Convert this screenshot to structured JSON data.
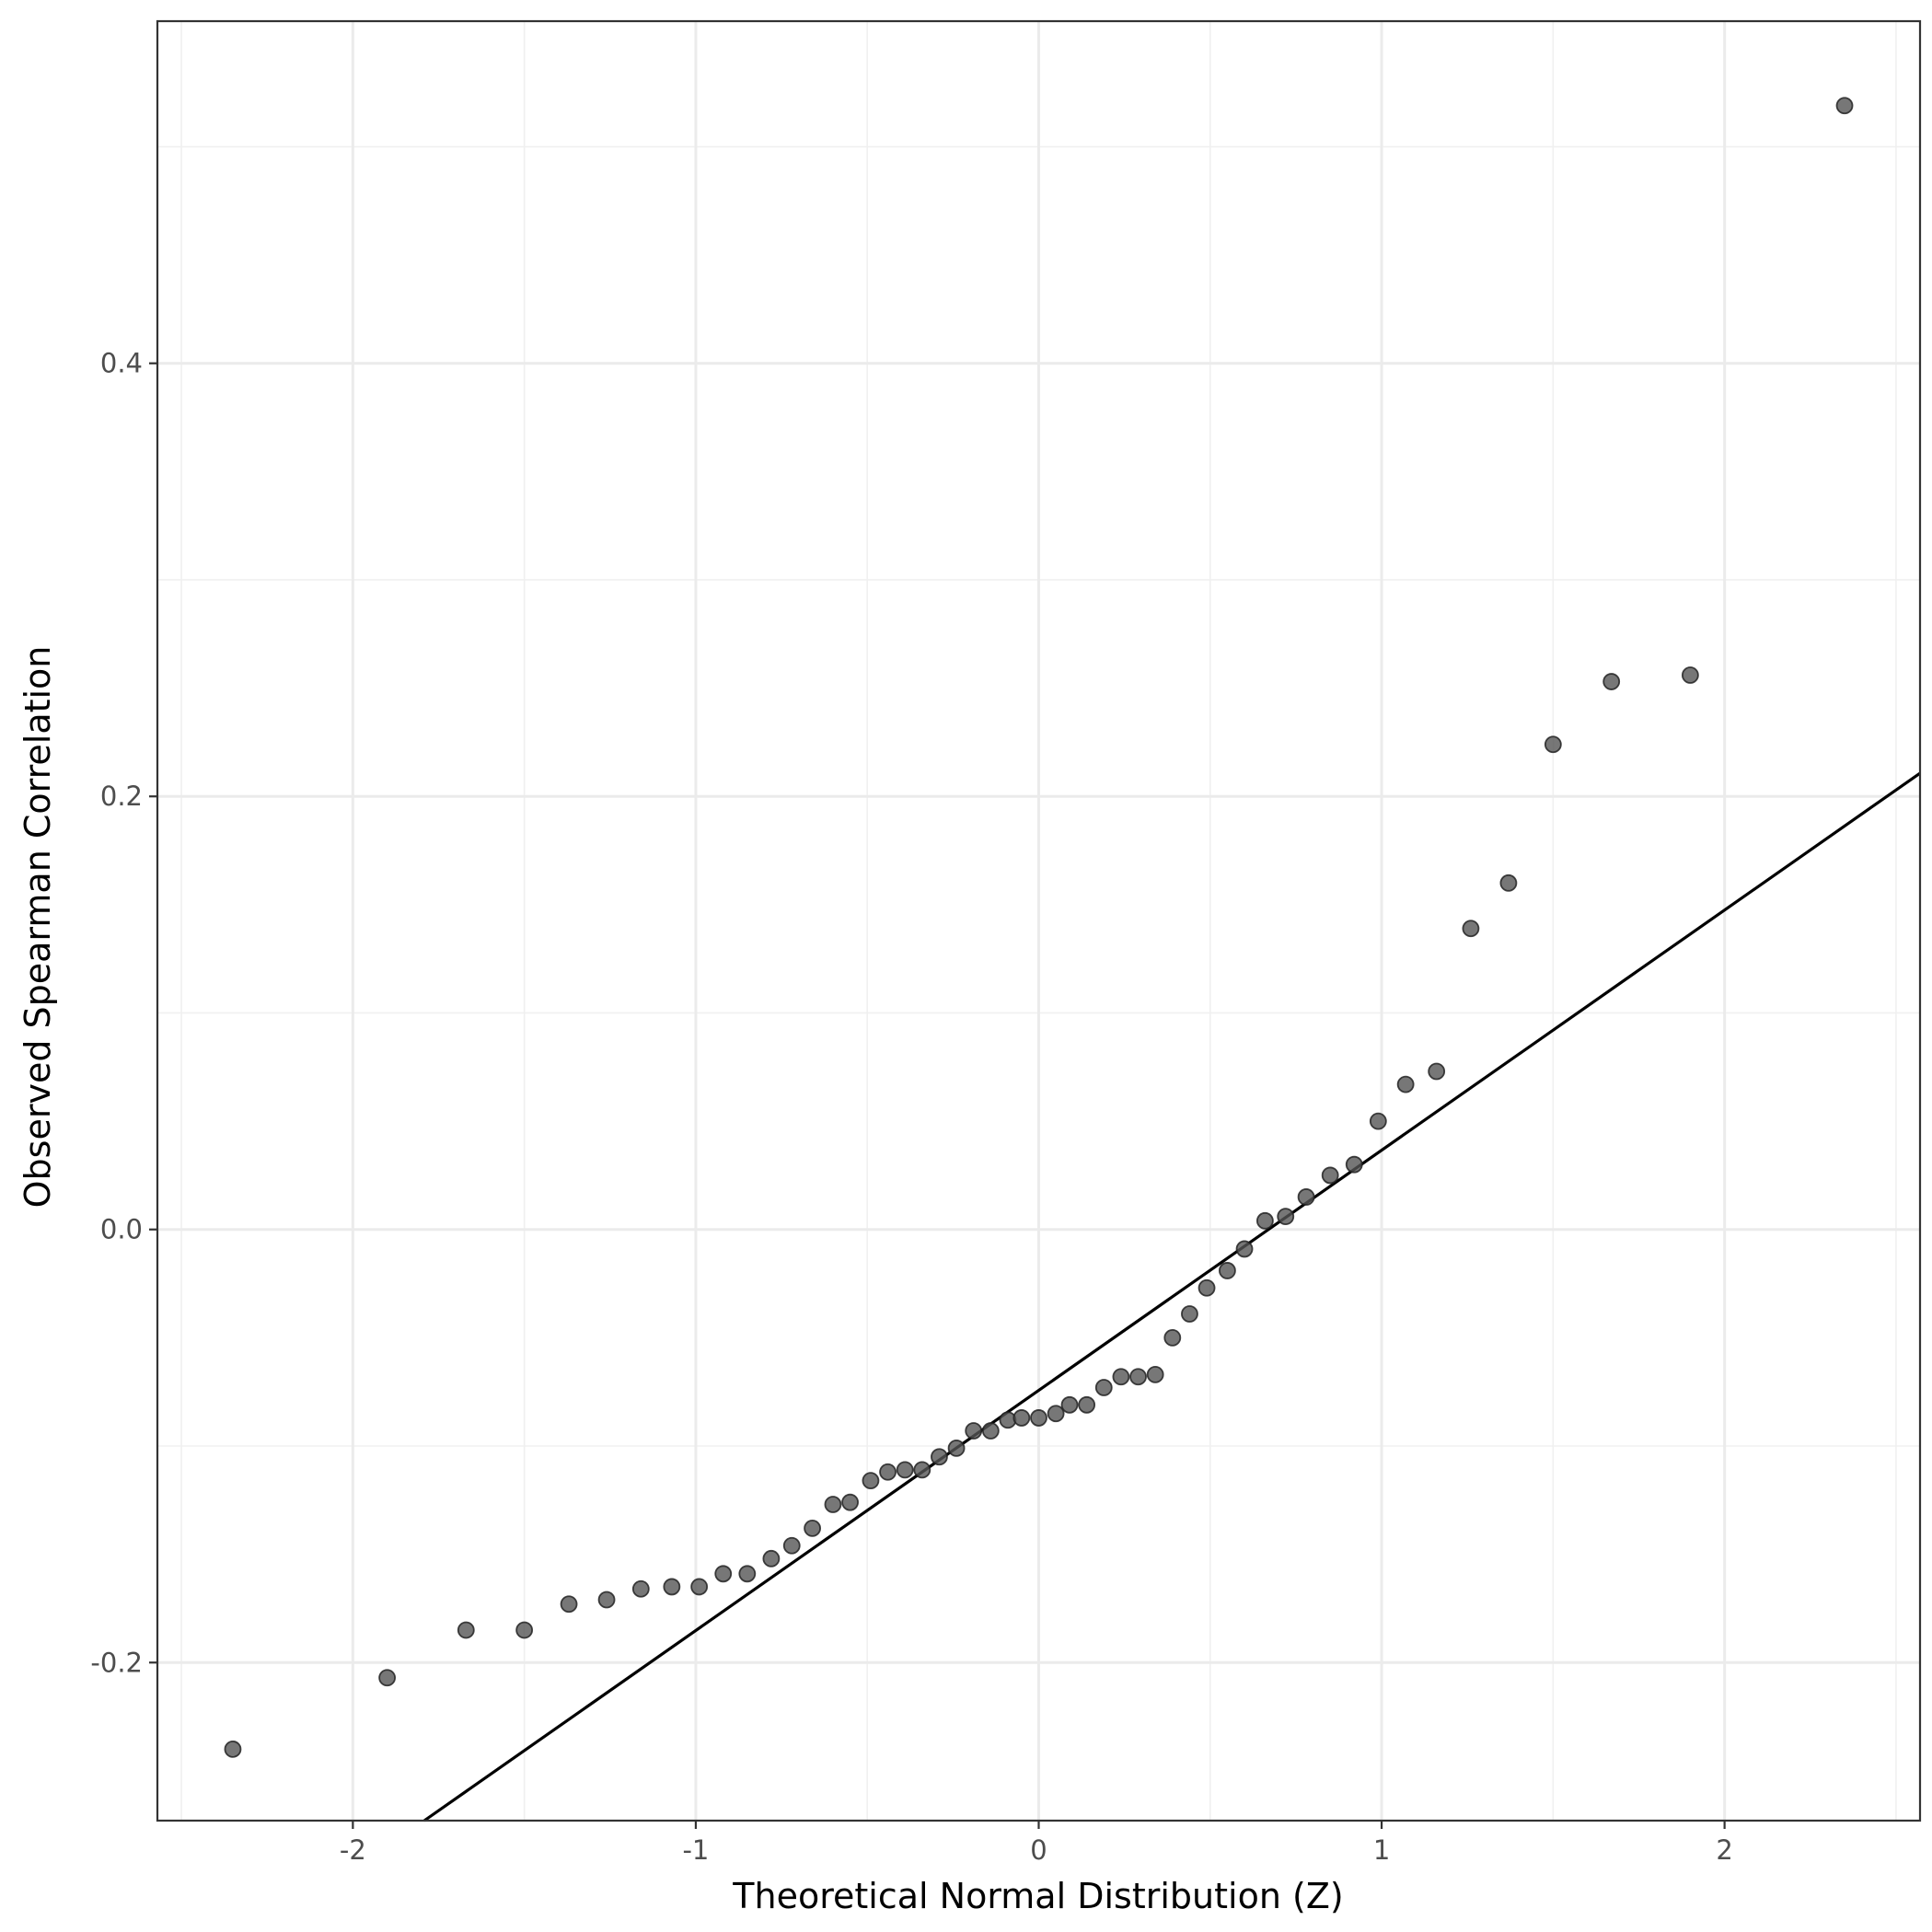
{
  "chart_data": {
    "type": "scatter",
    "xlabel": "Theoretical Normal Distribution (Z)",
    "ylabel": "Observed Spearman Correlation",
    "xlim": [
      -2.57,
      2.57
    ],
    "ylim": [
      -0.273,
      0.558
    ],
    "x_ticks": [
      -2,
      -1,
      0,
      1,
      2
    ],
    "x_tick_labels": [
      "-2",
      "-1",
      "0",
      "1",
      "2"
    ],
    "y_ticks": [
      -0.2,
      0.0,
      0.2,
      0.4
    ],
    "y_tick_labels": [
      "-0.2",
      "0.0",
      "0.2",
      "0.4"
    ],
    "grid": true,
    "reference_line": {
      "slope": 0.1109,
      "intercept": -0.0743
    },
    "point_color": "#555555",
    "points": [
      {
        "x": -2.35,
        "y": -0.24
      },
      {
        "x": -1.9,
        "y": -0.207
      },
      {
        "x": -1.67,
        "y": -0.185
      },
      {
        "x": -1.5,
        "y": -0.185
      },
      {
        "x": -1.37,
        "y": -0.173
      },
      {
        "x": -1.26,
        "y": -0.171
      },
      {
        "x": -1.16,
        "y": -0.166
      },
      {
        "x": -1.07,
        "y": -0.165
      },
      {
        "x": -0.99,
        "y": -0.165
      },
      {
        "x": -0.92,
        "y": -0.159
      },
      {
        "x": -0.85,
        "y": -0.159
      },
      {
        "x": -0.78,
        "y": -0.152
      },
      {
        "x": -0.72,
        "y": -0.146
      },
      {
        "x": -0.66,
        "y": -0.138
      },
      {
        "x": -0.6,
        "y": -0.127
      },
      {
        "x": -0.55,
        "y": -0.126
      },
      {
        "x": -0.49,
        "y": -0.116
      },
      {
        "x": -0.44,
        "y": -0.112
      },
      {
        "x": -0.39,
        "y": -0.111
      },
      {
        "x": -0.34,
        "y": -0.111
      },
      {
        "x": -0.29,
        "y": -0.105
      },
      {
        "x": -0.24,
        "y": -0.101
      },
      {
        "x": -0.19,
        "y": -0.093
      },
      {
        "x": -0.14,
        "y": -0.093
      },
      {
        "x": -0.09,
        "y": -0.088
      },
      {
        "x": -0.05,
        "y": -0.087
      },
      {
        "x": 0.0,
        "y": -0.087
      },
      {
        "x": 0.05,
        "y": -0.085
      },
      {
        "x": 0.09,
        "y": -0.081
      },
      {
        "x": 0.14,
        "y": -0.081
      },
      {
        "x": 0.19,
        "y": -0.073
      },
      {
        "x": 0.24,
        "y": -0.068
      },
      {
        "x": 0.29,
        "y": -0.068
      },
      {
        "x": 0.34,
        "y": -0.067
      },
      {
        "x": 0.39,
        "y": -0.05
      },
      {
        "x": 0.44,
        "y": -0.039
      },
      {
        "x": 0.49,
        "y": -0.027
      },
      {
        "x": 0.55,
        "y": -0.019
      },
      {
        "x": 0.6,
        "y": -0.009
      },
      {
        "x": 0.66,
        "y": 0.004
      },
      {
        "x": 0.72,
        "y": 0.006
      },
      {
        "x": 0.78,
        "y": 0.015
      },
      {
        "x": 0.85,
        "y": 0.025
      },
      {
        "x": 0.92,
        "y": 0.03
      },
      {
        "x": 0.99,
        "y": 0.05
      },
      {
        "x": 1.07,
        "y": 0.067
      },
      {
        "x": 1.16,
        "y": 0.073
      },
      {
        "x": 1.26,
        "y": 0.139
      },
      {
        "x": 1.37,
        "y": 0.16
      },
      {
        "x": 1.5,
        "y": 0.224
      },
      {
        "x": 1.67,
        "y": 0.253
      },
      {
        "x": 1.9,
        "y": 0.256
      },
      {
        "x": 2.35,
        "y": 0.519
      }
    ]
  }
}
